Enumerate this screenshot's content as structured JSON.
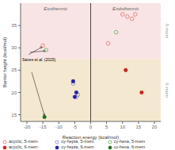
{
  "chart_data": {
    "type": "scatter",
    "xlabel": "Reaction energy (kcal/mol)",
    "ylabel": "Barrier height (kcal/mol)",
    "xlim": [
      -22,
      22
    ],
    "ylim": [
      13.5,
      40
    ],
    "xticks": [
      -20,
      -15,
      -10,
      -5,
      0,
      5,
      10,
      15,
      20
    ],
    "yticks": [
      15,
      20,
      25,
      30,
      35
    ],
    "grid": false,
    "legend": "bottom",
    "series": [
      {
        "name": "acyclic, 5-mem",
        "color": "#e07070",
        "marker": "ring",
        "x": [
          -15.0,
          5.5,
          10.0,
          11.5,
          13.0,
          14.0
        ],
        "values": [
          30.5,
          31.0,
          37.5,
          37.0,
          36.5,
          37.5
        ]
      },
      {
        "name": "cy-hepta, 5-mem",
        "color": "#8080cc",
        "marker": "ring",
        "x": [
          -5.5,
          -4.5,
          -4.0
        ],
        "values": [
          22.0,
          19.0,
          19.5
        ]
      },
      {
        "name": "cy-hexa, 5-mem",
        "color": "#60b060",
        "marker": "ring",
        "x": [
          -14.0,
          8.0
        ],
        "values": [
          29.5,
          33.5
        ]
      },
      {
        "name": "acyclic, 6-mem",
        "color": "#cc2020",
        "marker": "circle",
        "x": [
          11.0,
          16.0
        ],
        "values": [
          25.0,
          20.0
        ]
      },
      {
        "name": "cy-hepta, 6-mem",
        "color": "#2020a0",
        "marker": "circle",
        "x": [
          -5.5,
          -5.0,
          -4.5
        ],
        "values": [
          22.5,
          19.0,
          20.0
        ]
      },
      {
        "name": "cy-hexa, 6-mem",
        "color": "#207020",
        "marker": "circle",
        "x": [
          -14.5
        ],
        "values": [
          14.5
        ]
      }
    ],
    "bands": [
      {
        "label": "5-mem",
        "from": 27.5,
        "to": 40,
        "color": "#f8e4e4"
      },
      {
        "label": "6-mem",
        "from": 13.5,
        "to": 27.5,
        "color": "#f5e8d0"
      }
    ],
    "x_reference": 0,
    "annotations": [
      {
        "text": "Exothermic",
        "x": -11,
        "y": 39.2
      },
      {
        "text": "Endothermic",
        "x": 11,
        "y": 39.2
      },
      {
        "text": "Savee et.al. (2015)",
        "x": -21.5,
        "y": 27.3,
        "arrows": [
          {
            "from": [
              -19.0,
              29.0
            ],
            "to": [
              -14.2,
              29.3
            ]
          },
          {
            "from": [
              -18.5,
              24.5
            ],
            "to": [
              -14.5,
              14.8
            ]
          },
          {
            "from": [
              -19.5,
              28.5
            ],
            "to": [
              -15.2,
              30.2
            ]
          }
        ]
      }
    ]
  }
}
